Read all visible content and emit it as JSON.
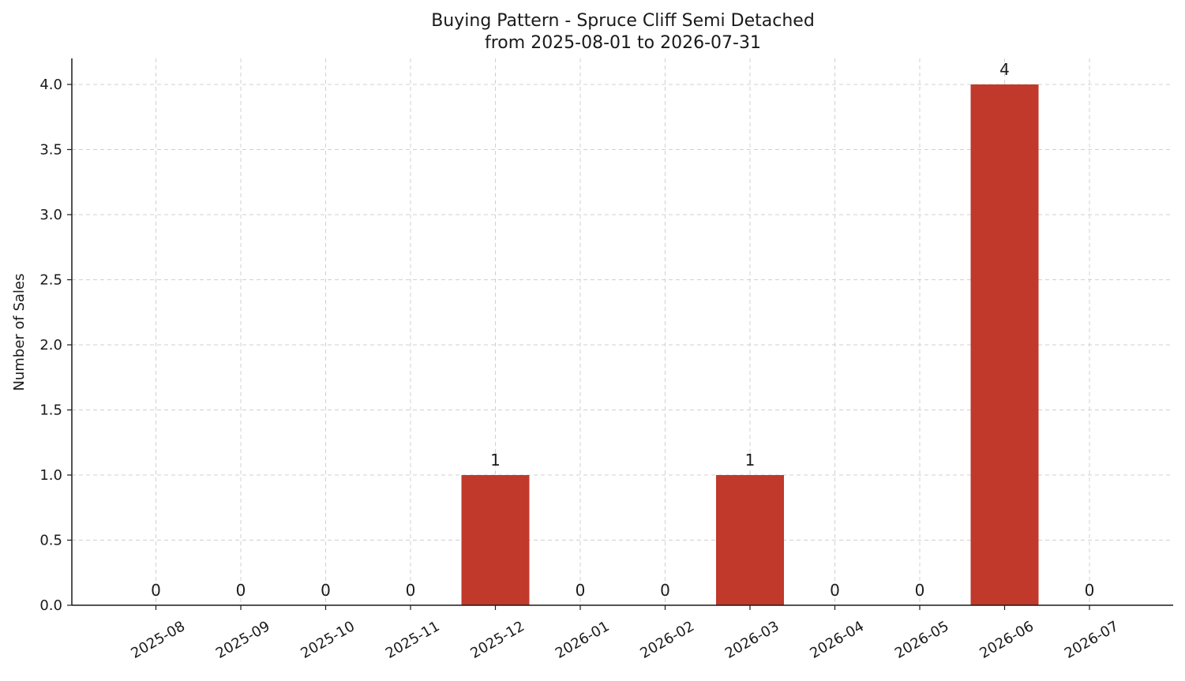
{
  "chart_data": {
    "type": "bar",
    "title": "Buying Pattern - Spruce Cliff Semi Detached",
    "subtitle": "from 2025-08-01 to 2026-07-31",
    "xlabel": "",
    "ylabel": "Number of Sales",
    "categories": [
      "2025-08",
      "2025-09",
      "2025-10",
      "2025-11",
      "2025-12",
      "2026-01",
      "2026-02",
      "2026-03",
      "2026-04",
      "2026-05",
      "2026-06",
      "2026-07"
    ],
    "values": [
      0,
      0,
      0,
      0,
      1,
      0,
      0,
      1,
      0,
      0,
      4,
      0
    ],
    "data_labels": [
      "0",
      "0",
      "0",
      "0",
      "1",
      "0",
      "0",
      "1",
      "0",
      "0",
      "4",
      "0"
    ],
    "ylim": [
      0,
      4.2
    ],
    "yticks": [
      "0.0",
      "0.5",
      "1.0",
      "1.5",
      "2.0",
      "2.5",
      "3.0",
      "3.5",
      "4.0"
    ],
    "ytick_values": [
      0,
      0.5,
      1.0,
      1.5,
      2.0,
      2.5,
      3.0,
      3.5,
      4.0
    ],
    "grid": true,
    "bar_color": "#c0392b"
  }
}
